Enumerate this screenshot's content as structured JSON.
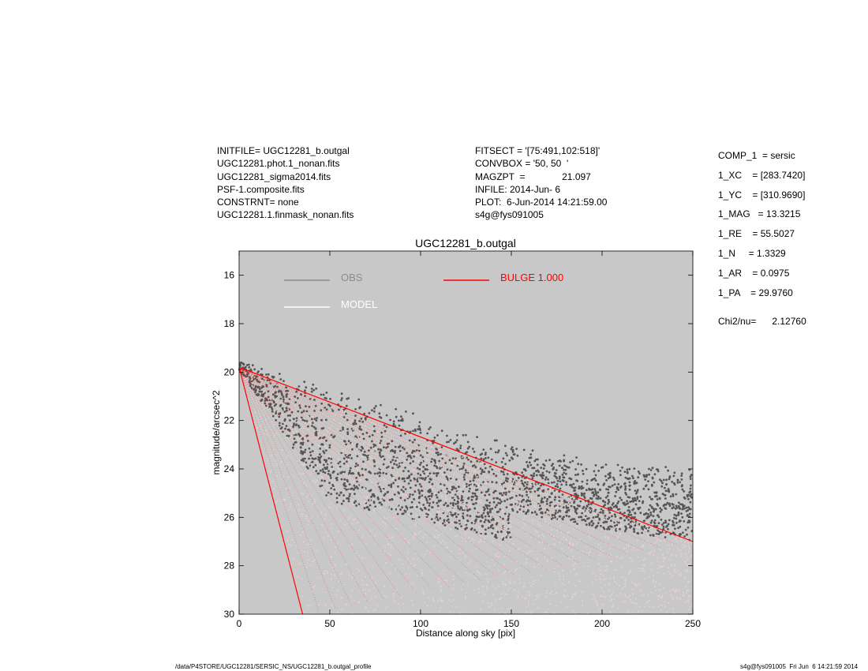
{
  "header_left": [
    "INITFILE= UGC12281_b.outgal",
    "UGC12281.phot.1_nonan.fits",
    "UGC12281_sigma2014.fits",
    "PSF-1.composite.fits",
    "CONSTRNT= none",
    "UGC12281.1.finmask_nonan.fits"
  ],
  "header_mid": [
    "FITSECT = '[75:491,102:518]'",
    "CONVBOX = '50, 50  '",
    "MAGZPT  =              21.097",
    "INFILE: 2014-Jun- 6",
    "PLOT:  6-Jun-2014 14:21:59.00",
    "s4g@fys091005"
  ],
  "params": [
    "COMP_1  = sersic",
    "1_XC    = [283.7420]",
    "1_YC    = [310.9690]",
    "1_MAG   = 13.3215",
    "1_RE    = 55.5027",
    "1_N     = 1.3329",
    "1_AR    = 0.0975",
    "1_PA    = 29.9760"
  ],
  "chi2": "Chi2/nu=      2.12760",
  "footer_left": "/data/P4STORE/UGC12281/SERSIC_NS/UGC12281_b.outgal_profile",
  "footer_right": "s4g@fys091005  Fri Jun  6 14:21:59 2014",
  "chart_data": {
    "type": "scatter",
    "title": "UGC12281_b.outgal",
    "xlabel": "Distance along sky [pix]",
    "ylabel": "magnitude/arcsec^2",
    "xlim": [
      0,
      250
    ],
    "ylim": [
      30,
      15
    ],
    "y_inverted": true,
    "xticks": [
      0,
      50,
      100,
      150,
      200,
      250
    ],
    "yticks": [
      16,
      18,
      20,
      22,
      24,
      26,
      28,
      30
    ],
    "grid": false,
    "background": "#c8c8c8",
    "legend": [
      {
        "label": "OBS",
        "color": "#8c8c8c"
      },
      {
        "label": "MODEL",
        "color": "#ffffff"
      },
      {
        "label": "BULGE  1.000",
        "color": "#ff0000"
      }
    ],
    "model_envelope": {
      "upper": [
        [
          0,
          19.8
        ],
        [
          250,
          27.0
        ]
      ],
      "lower": [
        [
          0,
          19.8
        ],
        [
          35,
          30.0
        ]
      ]
    },
    "obs_envelope": {
      "upper": [
        [
          0,
          19.5
        ],
        [
          40,
          20.5
        ],
        [
          100,
          21.8
        ],
        [
          150,
          23.0
        ],
        [
          200,
          23.7
        ],
        [
          250,
          23.9
        ]
      ],
      "lower_main": [
        [
          0,
          20.0
        ],
        [
          50,
          26.5
        ],
        [
          250,
          29.5
        ]
      ]
    }
  }
}
